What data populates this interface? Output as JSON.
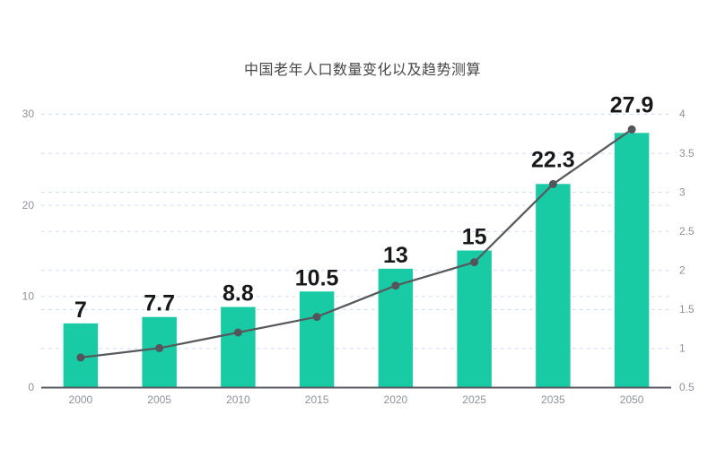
{
  "title": {
    "text": "中国老年人口数量变化以及趋势测算"
  },
  "chart_data": {
    "type": "bar+line",
    "title": "中国老年人口数量变化以及趋势测算",
    "categories": [
      "2000",
      "2005",
      "2010",
      "2015",
      "2020",
      "2025",
      "2035",
      "2050"
    ],
    "series": [
      {
        "id": "bar-series",
        "type": "bar",
        "y_axis": "left",
        "values": [
          7,
          7.7,
          8.8,
          10.5,
          13,
          15,
          22.3,
          27.9
        ],
        "data_labels": [
          "7",
          "7.7",
          "8.8",
          "10.5",
          "13",
          "15",
          "22.3",
          "27.9"
        ],
        "color": "#18cba4"
      },
      {
        "id": "line-series",
        "type": "line",
        "y_axis": "right",
        "values": [
          0.88,
          1.0,
          1.2,
          1.4,
          1.8,
          2.1,
          3.1,
          3.8
        ],
        "color": "#58595c"
      }
    ],
    "left_axis": {
      "min": 0,
      "max": 30,
      "tick_values": [
        0,
        10,
        20,
        30
      ],
      "tick_labels": [
        "0",
        "10",
        "20",
        "30"
      ]
    },
    "right_axis": {
      "min": 0.5,
      "max": 4,
      "tick_values": [
        0.5,
        1,
        1.5,
        2,
        2.5,
        3,
        3.5,
        4
      ],
      "tick_labels": [
        "0.5",
        "1",
        "1.5",
        "2",
        "2.5",
        "3",
        "3.5",
        "4"
      ]
    },
    "grid": {
      "dashed": true,
      "legend": "none"
    }
  },
  "style": {
    "background": "#ffffff",
    "bar_color": "#18cba4",
    "line_color": "#58595c",
    "point_color": "#54555a",
    "data_label_color": "#17181a",
    "grid_color": "#ccd7f2",
    "axis_line_color": "#55585e",
    "tick_label_color": "#8c929c",
    "title_color": "#464646"
  }
}
